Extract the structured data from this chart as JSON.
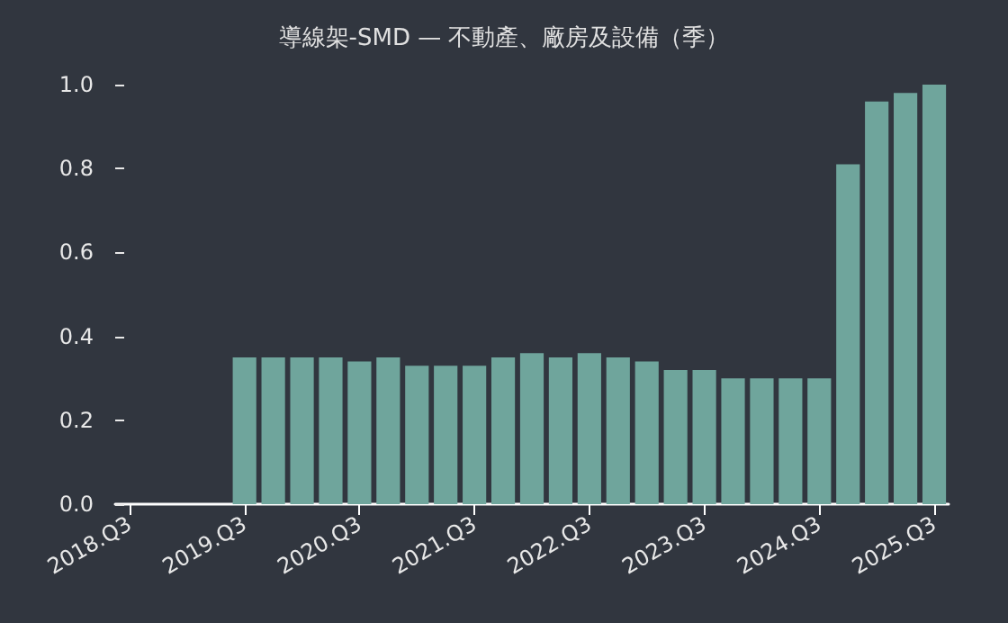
{
  "chart_data": {
    "type": "bar",
    "title": "導線架-SMD — 不動產、廠房及設備（季）",
    "categories": [
      "2018.Q3",
      null,
      null,
      null,
      "2019.Q3",
      null,
      null,
      null,
      "2020.Q3",
      null,
      null,
      null,
      "2021.Q3",
      null,
      null,
      null,
      "2022.Q3",
      null,
      null,
      null,
      "2023.Q3",
      null,
      null,
      null,
      "2024.Q3",
      null,
      null,
      null,
      "2025.Q3"
    ],
    "values": [
      null,
      null,
      null,
      null,
      0.35,
      0.35,
      0.35,
      0.35,
      0.34,
      0.35,
      0.33,
      0.33,
      0.33,
      0.35,
      0.36,
      0.35,
      0.36,
      0.35,
      0.34,
      0.32,
      0.32,
      0.3,
      0.3,
      0.3,
      0.3,
      0.81,
      0.96,
      0.98,
      1.0
    ],
    "color": "#6fa59c",
    "ylim": [
      0,
      1.0
    ],
    "yticks": [
      {
        "value": 0,
        "label": "0.0"
      },
      0.2,
      0.4,
      0.6,
      0.8,
      {
        "value": 1,
        "label": "1.0"
      }
    ],
    "grid": false
  }
}
